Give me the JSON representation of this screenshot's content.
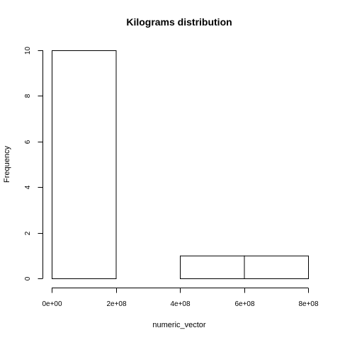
{
  "chart_data": {
    "type": "bar",
    "title": "Kilograms distribution",
    "xlabel": "numeric_vector",
    "ylabel": "Frequency",
    "bins": [
      {
        "start": 0,
        "end": 200000000,
        "count": 10
      },
      {
        "start": 200000000,
        "end": 400000000,
        "count": 0
      },
      {
        "start": 400000000,
        "end": 600000000,
        "count": 1
      },
      {
        "start": 600000000,
        "end": 800000000,
        "count": 1
      }
    ],
    "xlim": [
      0,
      800000000
    ],
    "ylim": [
      0,
      10
    ],
    "x_ticks": [
      {
        "value": 0,
        "label": "0e+00"
      },
      {
        "value": 200000000,
        "label": "2e+08"
      },
      {
        "value": 400000000,
        "label": "4e+08"
      },
      {
        "value": 600000000,
        "label": "6e+08"
      },
      {
        "value": 800000000,
        "label": "8e+08"
      }
    ],
    "y_ticks": [
      {
        "value": 0,
        "label": "0"
      },
      {
        "value": 2,
        "label": "2"
      },
      {
        "value": 4,
        "label": "4"
      },
      {
        "value": 6,
        "label": "6"
      },
      {
        "value": 8,
        "label": "8"
      },
      {
        "value": 10,
        "label": "10"
      }
    ],
    "grid": false,
    "colors": {
      "bar_fill": "#ffffff",
      "bar_stroke": "#000000"
    }
  }
}
